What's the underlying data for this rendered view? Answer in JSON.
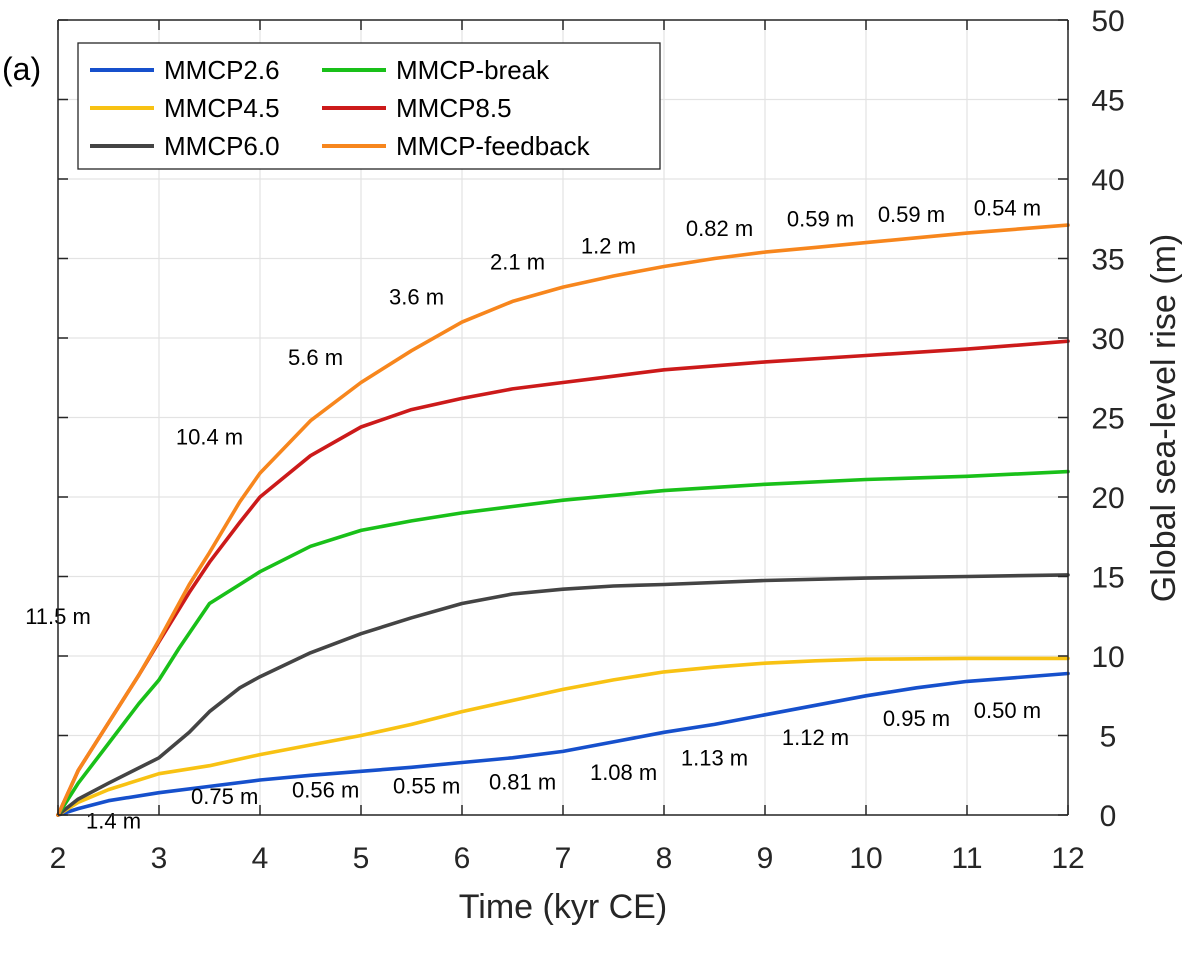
{
  "panel_label": "(a)",
  "chart_data": {
    "type": "line",
    "xlabel": "Time (kyr CE)",
    "ylabel": "Global sea-level rise (m)",
    "xlim": [
      2,
      12
    ],
    "ylim": [
      0,
      50
    ],
    "xticks": [
      2,
      3,
      4,
      5,
      6,
      7,
      8,
      9,
      10,
      11,
      12
    ],
    "yticks": [
      0,
      5,
      10,
      15,
      20,
      25,
      30,
      35,
      40,
      45,
      50
    ],
    "y_axis_side": "right",
    "grid": true,
    "legend": {
      "placement": "top-left",
      "columns": 2
    },
    "series": [
      {
        "name": "MMCP2.6",
        "color": "#1650cc",
        "x": [
          2.0,
          2.2,
          2.5,
          3.0,
          3.5,
          4.0,
          4.5,
          5.0,
          5.5,
          6.0,
          6.5,
          7.0,
          7.5,
          8.0,
          8.5,
          9.0,
          9.5,
          10.0,
          10.5,
          11.0,
          11.5,
          12.0
        ],
        "y": [
          0,
          0.4,
          0.9,
          1.4,
          1.8,
          2.2,
          2.5,
          2.75,
          3.0,
          3.3,
          3.6,
          4.0,
          4.6,
          5.2,
          5.7,
          6.3,
          6.9,
          7.5,
          8.0,
          8.4,
          8.65,
          8.9
        ]
      },
      {
        "name": "MMCP4.5",
        "color": "#f8c213",
        "x": [
          2.0,
          2.2,
          2.5,
          3.0,
          3.5,
          4.0,
          4.5,
          5.0,
          5.5,
          6.0,
          6.5,
          7.0,
          7.5,
          8.0,
          8.5,
          9.0,
          9.5,
          10.0,
          11.0,
          12.0
        ],
        "y": [
          0,
          0.8,
          1.6,
          2.6,
          3.1,
          3.8,
          4.4,
          5.0,
          5.7,
          6.5,
          7.2,
          7.9,
          8.5,
          9.0,
          9.3,
          9.55,
          9.7,
          9.8,
          9.85,
          9.85
        ]
      },
      {
        "name": "MMCP6.0",
        "color": "#444444",
        "x": [
          2.0,
          2.2,
          2.5,
          3.0,
          3.3,
          3.5,
          3.8,
          4.0,
          4.5,
          5.0,
          5.5,
          6.0,
          6.5,
          7.0,
          7.5,
          8.0,
          9.0,
          10.0,
          11.0,
          12.0
        ],
        "y": [
          0,
          1.0,
          2.0,
          3.6,
          5.2,
          6.5,
          8.0,
          8.7,
          10.2,
          11.4,
          12.4,
          13.3,
          13.9,
          14.2,
          14.4,
          14.5,
          14.75,
          14.9,
          15.0,
          15.1
        ]
      },
      {
        "name": "MMCP-break",
        "color": "#19c019",
        "x": [
          2.0,
          2.2,
          2.5,
          2.8,
          3.0,
          3.2,
          3.5,
          3.8,
          4.0,
          4.5,
          5.0,
          5.5,
          6.0,
          6.5,
          7.0,
          7.5,
          8.0,
          9.0,
          10.0,
          11.0,
          12.0
        ],
        "y": [
          0,
          2.0,
          4.5,
          7.0,
          8.5,
          10.5,
          13.3,
          14.5,
          15.3,
          16.9,
          17.9,
          18.5,
          19.0,
          19.4,
          19.8,
          20.1,
          20.4,
          20.8,
          21.1,
          21.3,
          21.6
        ]
      },
      {
        "name": "MMCP8.5",
        "color": "#cc1a1a",
        "x": [
          2.0,
          2.2,
          2.5,
          2.8,
          3.0,
          3.3,
          3.5,
          3.8,
          4.0,
          4.5,
          5.0,
          5.5,
          6.0,
          6.5,
          7.0,
          7.5,
          8.0,
          9.0,
          10.0,
          11.0,
          12.0
        ],
        "y": [
          0,
          2.8,
          5.8,
          8.8,
          10.9,
          14.0,
          15.9,
          18.4,
          20.0,
          22.6,
          24.4,
          25.5,
          26.2,
          26.8,
          27.2,
          27.6,
          28.0,
          28.5,
          28.9,
          29.3,
          29.8
        ]
      },
      {
        "name": "MMCP-feedback",
        "color": "#f7861d",
        "x": [
          2.0,
          2.2,
          2.5,
          2.8,
          3.0,
          3.3,
          3.5,
          3.8,
          4.0,
          4.5,
          5.0,
          5.5,
          6.0,
          6.5,
          7.0,
          7.5,
          8.0,
          8.5,
          9.0,
          9.5,
          10.0,
          10.5,
          11.0,
          11.5,
          12.0
        ],
        "y": [
          0,
          2.8,
          5.8,
          8.8,
          11.0,
          14.5,
          16.5,
          19.7,
          21.5,
          24.8,
          27.2,
          29.2,
          31.0,
          32.3,
          33.2,
          33.9,
          34.5,
          35.0,
          35.4,
          35.7,
          36.0,
          36.3,
          36.6,
          36.85,
          37.1
        ]
      }
    ],
    "annotations": [
      {
        "text": "11.5 m",
        "x": 2.0,
        "y": 12.0
      },
      {
        "text": "10.4 m",
        "x": 3.5,
        "y": 23.3
      },
      {
        "text": "5.6 m",
        "x": 4.55,
        "y": 28.3
      },
      {
        "text": "3.6 m",
        "x": 5.55,
        "y": 32.1
      },
      {
        "text": "2.1 m",
        "x": 6.55,
        "y": 34.3
      },
      {
        "text": "1.2 m",
        "x": 7.45,
        "y": 35.3
      },
      {
        "text": "0.82 m",
        "x": 8.55,
        "y": 36.4
      },
      {
        "text": "0.59 m",
        "x": 9.55,
        "y": 37.0
      },
      {
        "text": "0.59 m",
        "x": 10.45,
        "y": 37.3
      },
      {
        "text": "0.54 m",
        "x": 11.4,
        "y": 37.7
      },
      {
        "text": "1.4 m",
        "x": 2.55,
        "y": -0.85
      },
      {
        "text": "0.75 m",
        "x": 3.65,
        "y": 0.7
      },
      {
        "text": "0.56 m",
        "x": 4.65,
        "y": 1.1
      },
      {
        "text": "0.55 m",
        "x": 5.65,
        "y": 1.35
      },
      {
        "text": "0.81 m",
        "x": 6.6,
        "y": 1.6
      },
      {
        "text": "1.08 m",
        "x": 7.6,
        "y": 2.2
      },
      {
        "text": "1.13 m",
        "x": 8.5,
        "y": 3.1
      },
      {
        "text": "1.12 m",
        "x": 9.5,
        "y": 4.4
      },
      {
        "text": "0.95 m",
        "x": 10.5,
        "y": 5.6
      },
      {
        "text": "0.50 m",
        "x": 11.4,
        "y": 6.1
      }
    ]
  }
}
